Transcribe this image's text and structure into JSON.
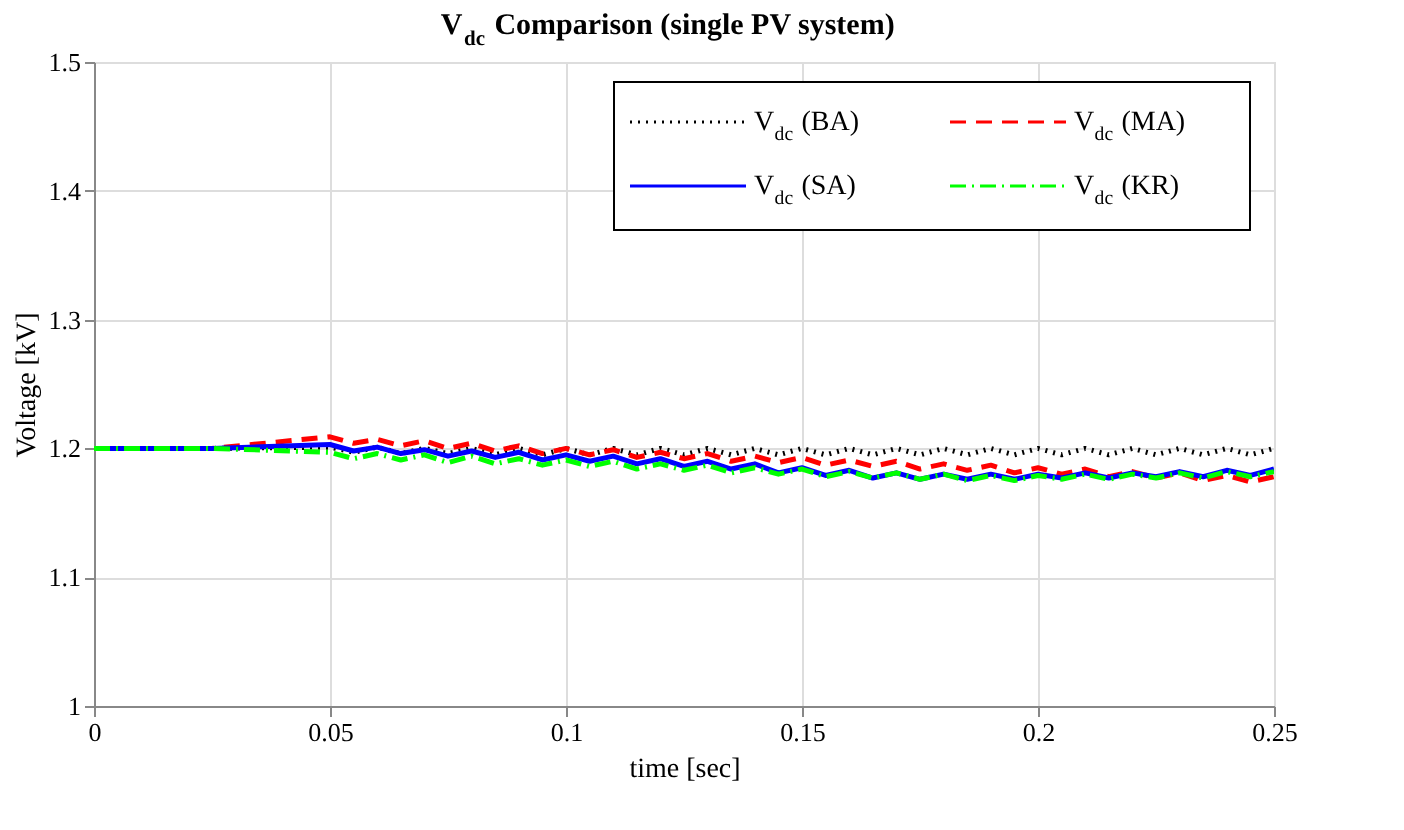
{
  "chart_data": {
    "type": "line",
    "title": "V$_{dc}$ Comparison (single PV system)",
    "xlabel": "time [sec]",
    "ylabel": "Voltage [kV]",
    "x": [
      0,
      0.025,
      0.05,
      0.055,
      0.06,
      0.065,
      0.07,
      0.075,
      0.08,
      0.085,
      0.09,
      0.095,
      0.1,
      0.105,
      0.11,
      0.115,
      0.12,
      0.125,
      0.13,
      0.135,
      0.14,
      0.145,
      0.15,
      0.155,
      0.16,
      0.165,
      0.17,
      0.175,
      0.18,
      0.185,
      0.19,
      0.195,
      0.2,
      0.205,
      0.21,
      0.215,
      0.22,
      0.225,
      0.23,
      0.235,
      0.24,
      0.245,
      0.25
    ],
    "series": [
      {
        "name": "V$_{dc}$ (BA)",
        "color": "#000000",
        "line_style": "dotted",
        "values": [
          1.2,
          1.2,
          1.201,
          1.197,
          1.201,
          1.196,
          1.2,
          1.196,
          1.2,
          1.195,
          1.2,
          1.195,
          1.2,
          1.195,
          1.2,
          1.195,
          1.2,
          1.195,
          1.2,
          1.195,
          1.2,
          1.195,
          1.2,
          1.195,
          1.2,
          1.195,
          1.2,
          1.195,
          1.2,
          1.195,
          1.2,
          1.195,
          1.2,
          1.195,
          1.2,
          1.195,
          1.2,
          1.195,
          1.2,
          1.195,
          1.2,
          1.195,
          1.2
        ]
      },
      {
        "name": "V$_{dc}$ (MA)",
        "color": "#ff0000",
        "line_style": "dashed",
        "values": [
          1.2,
          1.2,
          1.209,
          1.204,
          1.207,
          1.202,
          1.206,
          1.2,
          1.204,
          1.198,
          1.202,
          1.196,
          1.2,
          1.195,
          1.199,
          1.193,
          1.197,
          1.192,
          1.196,
          1.19,
          1.194,
          1.189,
          1.193,
          1.187,
          1.191,
          1.186,
          1.19,
          1.184,
          1.188,
          1.183,
          1.187,
          1.181,
          1.185,
          1.18,
          1.184,
          1.178,
          1.182,
          1.177,
          1.181,
          1.175,
          1.179,
          1.174,
          1.178
        ]
      },
      {
        "name": "V$_{dc}$ (SA)",
        "color": "#0000ff",
        "line_style": "solid",
        "values": [
          1.2,
          1.2,
          1.203,
          1.198,
          1.201,
          1.196,
          1.199,
          1.194,
          1.198,
          1.193,
          1.197,
          1.191,
          1.195,
          1.19,
          1.194,
          1.188,
          1.192,
          1.186,
          1.19,
          1.184,
          1.188,
          1.181,
          1.185,
          1.179,
          1.183,
          1.177,
          1.181,
          1.176,
          1.18,
          1.176,
          1.18,
          1.176,
          1.18,
          1.177,
          1.181,
          1.177,
          1.181,
          1.178,
          1.182,
          1.178,
          1.183,
          1.179,
          1.184
        ]
      },
      {
        "name": "V$_{dc}$ (KR)",
        "color": "#00ff00",
        "line_style": "dashdot",
        "values": [
          1.2,
          1.2,
          1.197,
          1.192,
          1.196,
          1.191,
          1.195,
          1.189,
          1.194,
          1.188,
          1.192,
          1.187,
          1.191,
          1.186,
          1.19,
          1.184,
          1.188,
          1.183,
          1.187,
          1.181,
          1.185,
          1.18,
          1.184,
          1.178,
          1.182,
          1.177,
          1.181,
          1.176,
          1.18,
          1.175,
          1.179,
          1.175,
          1.179,
          1.176,
          1.18,
          1.176,
          1.18,
          1.177,
          1.181,
          1.177,
          1.182,
          1.178,
          1.182
        ]
      }
    ],
    "xlim": [
      0,
      0.25
    ],
    "xticks": [
      0,
      0.05,
      0.1,
      0.15,
      0.2,
      0.25
    ],
    "ylim": [
      1,
      1.5
    ],
    "yticks": [
      1,
      1.1,
      1.2,
      1.3,
      1.4,
      1.5
    ],
    "grid": true,
    "legend": "top right"
  }
}
